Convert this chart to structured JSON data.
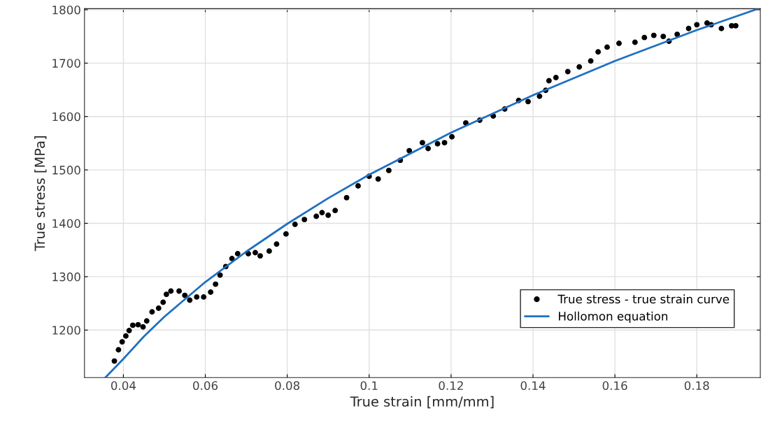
{
  "chart_data": {
    "type": "scatter",
    "xlabel": "True strain [mm/mm]",
    "ylabel": "True stress [MPa]",
    "xlim": [
      0.0305,
      0.1955
    ],
    "ylim": [
      1111,
      1802
    ],
    "xticks": [
      0.04,
      0.06,
      0.08,
      0.1,
      0.12,
      0.14,
      0.16,
      0.18
    ],
    "yticks": [
      1200,
      1300,
      1400,
      1500,
      1600,
      1700,
      1800
    ],
    "grid": true,
    "legend": "bottom right",
    "series": [
      {
        "name": "True stress - true strain curve",
        "marker": "circle",
        "color": "#000000",
        "x": [
          0.0378,
          0.0388,
          0.0397,
          0.0406,
          0.0414,
          0.0423,
          0.0436,
          0.0448,
          0.0457,
          0.047,
          0.0486,
          0.0497,
          0.0505,
          0.0516,
          0.0536,
          0.055,
          0.0562,
          0.0579,
          0.0596,
          0.0613,
          0.0625,
          0.0636,
          0.065,
          0.0665,
          0.0679,
          0.0705,
          0.0722,
          0.0734,
          0.0756,
          0.0774,
          0.0797,
          0.0819,
          0.0842,
          0.0871,
          0.0885,
          0.09,
          0.0917,
          0.0945,
          0.0973,
          0.1,
          0.1022,
          0.1048,
          0.1076,
          0.1098,
          0.113,
          0.1144,
          0.1167,
          0.1184,
          0.1202,
          0.1236,
          0.127,
          0.1303,
          0.1331,
          0.1365,
          0.1388,
          0.1416,
          0.1431,
          0.1439,
          0.1456,
          0.1485,
          0.1513,
          0.1541,
          0.1559,
          0.1581,
          0.161,
          0.1649,
          0.1672,
          0.1695,
          0.1718,
          0.1732,
          0.1752,
          0.178,
          0.18,
          0.1825,
          0.1835,
          0.186,
          0.1885,
          0.1895
        ],
        "values": [
          1142,
          1163,
          1178,
          1189,
          1199,
          1209,
          1210,
          1206,
          1217,
          1234,
          1241,
          1252,
          1267,
          1273,
          1273,
          1265,
          1256,
          1262,
          1262,
          1271,
          1286,
          1303,
          1319,
          1334,
          1343,
          1343,
          1345,
          1339,
          1348,
          1361,
          1380,
          1398,
          1407,
          1413,
          1420,
          1415,
          1424,
          1448,
          1470,
          1488,
          1483,
          1499,
          1518,
          1536,
          1551,
          1540,
          1549,
          1551,
          1562,
          1588,
          1593,
          1601,
          1614,
          1630,
          1628,
          1638,
          1649,
          1667,
          1673,
          1684,
          1693,
          1704,
          1721,
          1730,
          1737,
          1739,
          1748,
          1752,
          1750,
          1741,
          1754,
          1765,
          1772,
          1775,
          1772,
          1765,
          1770,
          1770
        ]
      },
      {
        "name": "Hollomon equation",
        "type": "line",
        "line_style": "solid",
        "color": "#1f70c0",
        "x": [
          0.0356,
          0.04,
          0.045,
          0.05,
          0.06,
          0.07,
          0.08,
          0.09,
          0.1,
          0.12,
          0.14,
          0.16,
          0.18,
          0.195
        ],
        "values": [
          1111,
          1146,
          1188,
          1225,
          1290,
          1347,
          1399,
          1447,
          1491,
          1570,
          1640,
          1704,
          1762,
          1802
        ]
      }
    ]
  }
}
